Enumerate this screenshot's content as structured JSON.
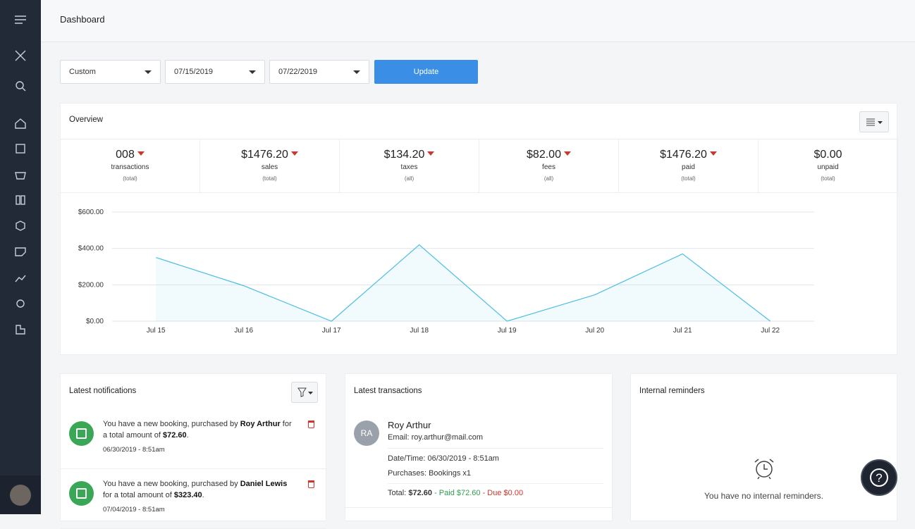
{
  "header": {
    "title": "Dashboard"
  },
  "filters": {
    "range": "Custom",
    "start": "07/15/2019",
    "end": "07/22/2019",
    "button": "Update"
  },
  "overview": {
    "title": "Overview",
    "stats": [
      {
        "value": "008",
        "label": "transactions",
        "scope": "(total)",
        "trend": "down"
      },
      {
        "value": "$1476.20",
        "label": "sales",
        "scope": "(total)",
        "trend": "down"
      },
      {
        "value": "$134.20",
        "label": "taxes",
        "scope": "(all)",
        "trend": "down"
      },
      {
        "value": "$82.00",
        "label": "fees",
        "scope": "(all)",
        "trend": "down"
      },
      {
        "value": "$1476.20",
        "label": "paid",
        "scope": "(total)",
        "trend": "down"
      },
      {
        "value": "$0.00",
        "label": "unpaid",
        "scope": "(total)"
      }
    ]
  },
  "chart_data": {
    "type": "line",
    "categories": [
      "Jul 15",
      "Jul 16",
      "Jul 17",
      "Jul 18",
      "Jul 19",
      "Jul 20",
      "Jul 21",
      "Jul 22"
    ],
    "series": [
      {
        "color": "#4cbfe2",
        "values": [
          350,
          195,
          0,
          420,
          0,
          145,
          370,
          0
        ]
      }
    ],
    "ylim": [
      0,
      600
    ],
    "yticks": [
      {
        "value": 0,
        "label": "$0.00"
      },
      {
        "value": 200,
        "label": "$200.00"
      },
      {
        "value": 400,
        "label": "$400.00"
      },
      {
        "value": 600,
        "label": "$600.00"
      }
    ],
    "grid": true,
    "area": true
  },
  "notifications": {
    "title": "Latest notifications",
    "items": [
      {
        "before": "You have a new booking, purchased by",
        "name": "Roy Arthur",
        "middle": "for a total amount of",
        "amount": "$72.60",
        "after": ".",
        "date": "06/30/2019 - 8:51am"
      },
      {
        "before": "You have a new booking, purchased by",
        "name": "Daniel Lewis",
        "middle": "for a total amount of",
        "amount": "$323.40",
        "after": ".",
        "date": "07/04/2019 - 8:51am"
      }
    ]
  },
  "transactions": {
    "title": "Latest transactions",
    "items": [
      {
        "initials": "RA",
        "name": "Roy Arthur",
        "email_label": "Email:",
        "email": "roy.arthur@mail.com",
        "date_label": "Date/Time:",
        "date": "06/30/2019 - 8:51am",
        "purchases_label": "Purchases:",
        "purchases": "Bookings x1",
        "total_label": "Total:",
        "total": "$72.60",
        "paid": "- Paid $72.60",
        "due": "- Due $0.00"
      }
    ]
  },
  "reminders": {
    "title": "Internal reminders",
    "empty": "You have no internal reminders."
  },
  "help": "?"
}
